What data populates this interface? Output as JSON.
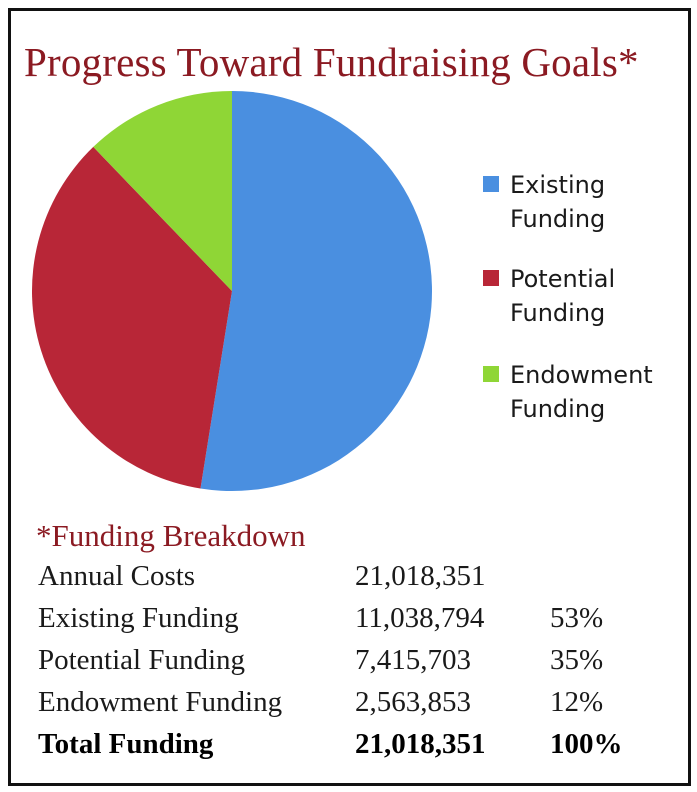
{
  "title": "Progress Toward Fundraising Goals*",
  "colors": {
    "title": "#8b1a22",
    "existing": "#4a8fe0",
    "potential": "#b82637",
    "endowment": "#8fd636"
  },
  "chart_data": {
    "type": "pie",
    "title": "Progress Toward Fundraising Goals*",
    "categories": [
      "Existing Funding",
      "Potential Funding",
      "Endowment Funding"
    ],
    "values": [
      11038794,
      7415703,
      2563853
    ],
    "colors": [
      "#4a8fe0",
      "#b82637",
      "#8fd636"
    ],
    "start_angle_deg": 0,
    "direction": "clockwise",
    "legend": "right",
    "legend_labels": [
      [
        "Existing",
        "Funding"
      ],
      [
        "Potential",
        "Funding"
      ],
      [
        "Endowment",
        "Funding"
      ]
    ]
  },
  "breakdown": {
    "title": "*Funding Breakdown",
    "rows": [
      {
        "label": "Annual Costs",
        "amount": "21,018,351",
        "pct": ""
      },
      {
        "label": "Existing Funding",
        "amount": "11,038,794",
        "pct": "53%"
      },
      {
        "label": "Potential Funding",
        "amount": "7,415,703",
        "pct": "35%"
      },
      {
        "label": "Endowment Funding",
        "amount": "2,563,853",
        "pct": "12%"
      }
    ],
    "total": {
      "label": "Total Funding",
      "amount": "21,018,351",
      "pct": "100%"
    }
  }
}
